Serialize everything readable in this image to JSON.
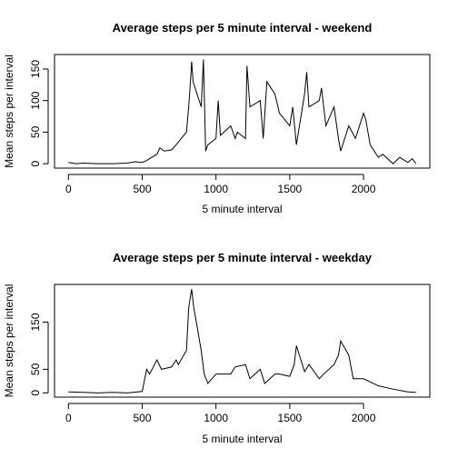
{
  "chart_data": [
    {
      "type": "line",
      "title": "Average steps per 5 minute interval - weekend",
      "xlabel": "5 minute interval",
      "ylabel": "Mean steps per interval",
      "color": "#000000",
      "x": [
        0,
        50,
        100,
        200,
        300,
        400,
        450,
        500,
        530,
        550,
        600,
        620,
        650,
        700,
        730,
        800,
        815,
        830,
        835,
        845,
        900,
        915,
        930,
        945,
        1000,
        1015,
        1030,
        1100,
        1130,
        1145,
        1200,
        1210,
        1230,
        1300,
        1320,
        1345,
        1400,
        1430,
        1500,
        1520,
        1545,
        1600,
        1615,
        1630,
        1700,
        1715,
        1745,
        1800,
        1830,
        1845,
        1900,
        1945,
        2000,
        2015,
        2045,
        2100,
        2130,
        2200,
        2245,
        2300,
        2330,
        2355
      ],
      "values": [
        2,
        0,
        1,
        0,
        0,
        1,
        3,
        2,
        5,
        8,
        15,
        25,
        20,
        22,
        30,
        50,
        90,
        140,
        162,
        130,
        90,
        165,
        20,
        30,
        40,
        100,
        45,
        60,
        40,
        50,
        40,
        155,
        90,
        100,
        40,
        130,
        110,
        80,
        60,
        90,
        30,
        110,
        145,
        90,
        100,
        120,
        60,
        90,
        40,
        20,
        60,
        40,
        80,
        70,
        30,
        10,
        15,
        0,
        10,
        2,
        8,
        0
      ],
      "xlim": [
        -94.2,
        2449.2
      ],
      "ylim": [
        -7,
        173
      ],
      "xticks": [
        0,
        500,
        1000,
        1500,
        2000
      ],
      "yticks": [
        0,
        50,
        100,
        150
      ]
    },
    {
      "type": "line",
      "title": "Average steps per 5 minute interval - weekday",
      "xlabel": "5 minute interval",
      "ylabel": "Mean steps per interval",
      "color": "#000000",
      "x": [
        0,
        100,
        200,
        300,
        400,
        500,
        530,
        550,
        600,
        630,
        700,
        730,
        745,
        800,
        815,
        835,
        850,
        900,
        920,
        945,
        1000,
        1100,
        1130,
        1200,
        1230,
        1300,
        1330,
        1400,
        1430,
        1500,
        1530,
        1545,
        1600,
        1630,
        1700,
        1730,
        1800,
        1830,
        1845,
        1900,
        1930,
        2000,
        2100,
        2200,
        2300,
        2355
      ],
      "values": [
        2,
        1,
        0,
        1,
        0,
        3,
        50,
        40,
        70,
        50,
        55,
        70,
        60,
        90,
        180,
        220,
        180,
        90,
        40,
        20,
        40,
        40,
        55,
        60,
        30,
        50,
        20,
        40,
        40,
        35,
        60,
        100,
        45,
        60,
        30,
        40,
        60,
        80,
        110,
        80,
        30,
        30,
        15,
        8,
        2,
        1
      ],
      "xlim": [
        -94.2,
        2449.2
      ],
      "ylim": [
        -9,
        230
      ],
      "xticks": [
        0,
        500,
        1000,
        1500,
        2000
      ],
      "yticks": [
        0,
        50,
        150
      ]
    }
  ]
}
